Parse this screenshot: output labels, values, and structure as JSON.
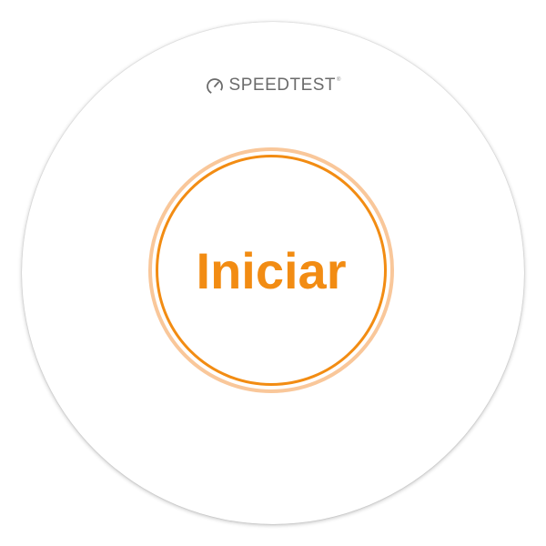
{
  "brand": {
    "icon": "speedometer-icon",
    "name": "SPEEDTEST",
    "trademark": "®"
  },
  "start_button": {
    "label": "Iniciar"
  },
  "colors": {
    "accent": "#f28c13",
    "accent_ring": "#f9c79a",
    "brand_text": "#6b6b6b",
    "background": "#ffffff"
  }
}
